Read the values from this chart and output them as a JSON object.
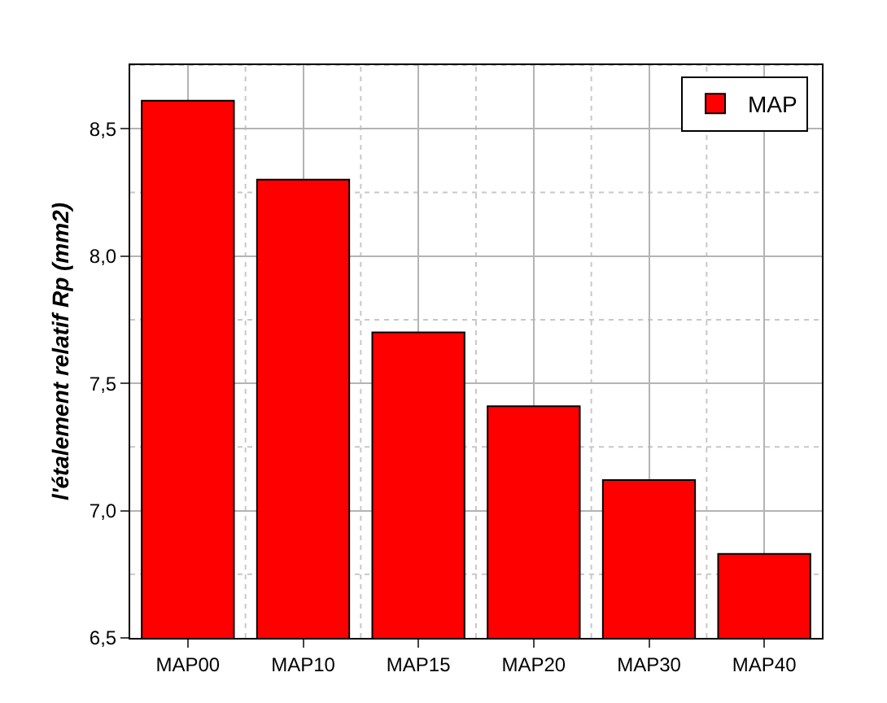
{
  "chart_data": {
    "type": "bar",
    "ylabel": "l'étalement relatif Rp (mm2)",
    "categories": [
      "MAP00",
      "MAP10",
      "MAP15",
      "MAP20",
      "MAP30",
      "MAP40"
    ],
    "series": [
      {
        "name": "MAP",
        "color": "#ff0000",
        "values": [
          8.61,
          8.3,
          7.7,
          7.41,
          7.12,
          6.83
        ]
      }
    ],
    "ylim": [
      6.5,
      8.75
    ],
    "yticks": [
      {
        "value": 6.5,
        "label": "6,5"
      },
      {
        "value": 7.0,
        "label": "7,0"
      },
      {
        "value": 7.5,
        "label": "7,5"
      },
      {
        "value": 8.0,
        "label": "8,0"
      },
      {
        "value": 8.5,
        "label": "8,5"
      }
    ],
    "grid": true,
    "legend": "top right"
  }
}
